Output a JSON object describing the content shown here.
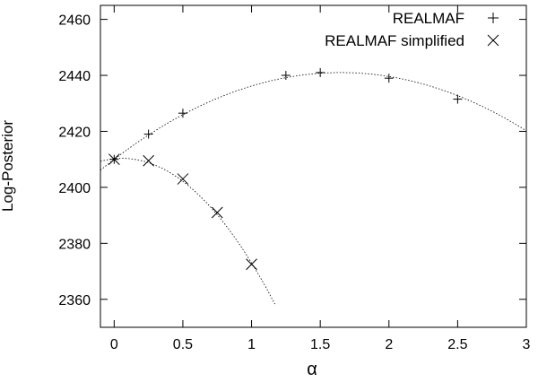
{
  "chart_data": {
    "type": "scatter",
    "title": "",
    "xlabel": "α",
    "ylabel": "Log-Posterior",
    "xlim": [
      -0.1,
      3
    ],
    "ylim": [
      2350,
      2465
    ],
    "xticks": [
      0,
      0.5,
      1,
      1.5,
      2,
      2.5,
      3
    ],
    "xtick_labels": [
      "0",
      "0.5",
      "1",
      "1.5",
      "2",
      "2.5",
      "3"
    ],
    "yticks": [
      2360,
      2380,
      2400,
      2420,
      2440,
      2460
    ],
    "ytick_labels": [
      "2360",
      "2380",
      "2400",
      "2420",
      "2440",
      "2460"
    ],
    "grid": false,
    "legend_position": "top-right",
    "series": [
      {
        "name": "REALMAF",
        "marker": "plus",
        "x": [
          0,
          0.25,
          0.5,
          1.25,
          1.5,
          2,
          2.5
        ],
        "y": [
          2410,
          2419,
          2426.5,
          2440,
          2441,
          2439,
          2431.5
        ],
        "fit": {
          "kind": "quadratic",
          "coeffs": [
            2410,
            37.6,
            -11.4
          ],
          "x_range": [
            -0.1,
            3
          ]
        }
      },
      {
        "name": "REALMAF simplified",
        "marker": "cross",
        "x": [
          0,
          0.25,
          0.5,
          0.75,
          1
        ],
        "y": [
          2410,
          2409.5,
          2403,
          2391,
          2372.5
        ],
        "fit": {
          "kind": "quadratic",
          "coeffs": [
            2410.2,
            5,
            -42.2
          ],
          "x_range": [
            -0.1,
            1.17
          ]
        }
      }
    ]
  }
}
